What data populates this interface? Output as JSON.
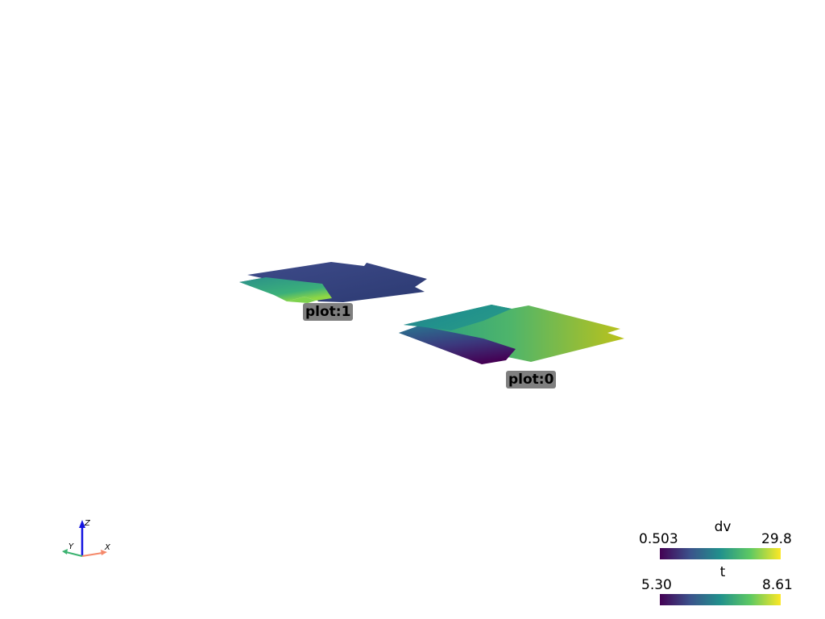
{
  "scene": {
    "background": "#ffffff",
    "colormap": "viridis",
    "colormap_stops": [
      "#440154",
      "#3b528b",
      "#21918c",
      "#5ec962",
      "#fde725"
    ]
  },
  "labels": {
    "plot1": "plot:1",
    "plot0": "plot:0"
  },
  "scalar_bars": [
    {
      "title": "dv",
      "min": "0.503",
      "max": "29.8"
    },
    {
      "title": "t",
      "min": "5.30",
      "max": "8.61"
    }
  ],
  "axes": {
    "x_label": "X",
    "y_label": "Y",
    "z_label": "Z",
    "x_color": "#f5896b",
    "y_color": "#3cb371",
    "z_color": "#1414e0"
  }
}
